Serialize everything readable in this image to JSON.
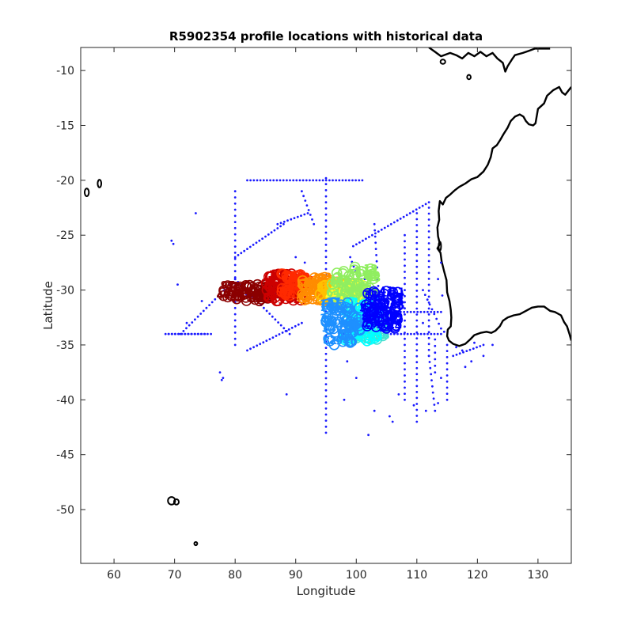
{
  "chart_data": {
    "type": "scatter",
    "title": "R5902354 profile locations with historical data",
    "xlabel": "Longitude",
    "ylabel": "Latitude",
    "xlim": [
      54.5,
      135.5
    ],
    "ylim": [
      -54.9,
      -7.9
    ],
    "xticks": [
      60,
      70,
      80,
      90,
      100,
      110,
      120,
      130
    ],
    "yticks": [
      -10,
      -15,
      -20,
      -25,
      -30,
      -35,
      -40,
      -45,
      -50
    ],
    "grid": false,
    "legend": "none",
    "colors": {
      "historical": "#1a1aff",
      "coastline": "#000000",
      "axis": "#262626"
    },
    "series": [
      {
        "kind": "historical-points",
        "tracks": [
          {
            "from": [
              82,
              -20
            ],
            "to": [
              101,
              -20
            ]
          },
          {
            "from": [
              95,
              -19.8
            ],
            "to": [
              95,
              -43
            ]
          },
          {
            "from": [
              80,
              -21
            ],
            "to": [
              80,
              -35
            ]
          },
          {
            "from": [
              69,
              -34
            ],
            "to": [
              76,
              -34
            ]
          },
          {
            "from": [
              71,
              -34
            ],
            "to": [
              80,
              -29
            ]
          },
          {
            "from": [
              80,
              -29
            ],
            "to": [
              89,
              -34
            ]
          },
          {
            "from": [
              82,
              -35.5
            ],
            "to": [
              91,
              -33
            ]
          },
          {
            "from": [
              80,
              -27
            ],
            "to": [
              88,
              -24
            ]
          },
          {
            "from": [
              87,
              -24
            ],
            "to": [
              92,
              -23
            ]
          },
          {
            "from": [
              91,
              -21
            ],
            "to": [
              93,
              -24
            ]
          },
          {
            "from": [
              99.5,
              -26
            ],
            "to": [
              112,
              -22
            ]
          },
          {
            "from": [
              103,
              -24
            ],
            "to": [
              104,
              -33
            ]
          },
          {
            "from": [
              108,
              -25
            ],
            "to": [
              108,
              -40
            ]
          },
          {
            "from": [
              110,
              -23
            ],
            "to": [
              110,
              -42
            ]
          },
          {
            "from": [
              112,
              -22.5
            ],
            "to": [
              112,
              -36
            ]
          },
          {
            "from": [
              112,
              -36
            ],
            "to": [
              113,
              -41
            ]
          },
          {
            "from": [
              115,
              -35
            ],
            "to": [
              115,
              -40
            ]
          },
          {
            "from": [
              116,
              -36
            ],
            "to": [
              121,
              -35
            ]
          },
          {
            "from": [
              98,
              -34
            ],
            "to": [
              114,
              -34
            ]
          },
          {
            "from": [
              99,
              -29
            ],
            "to": [
              102,
              -29
            ]
          },
          {
            "from": [
              104,
              -32
            ],
            "to": [
              114,
              -32
            ]
          },
          {
            "from": [
              78,
              -30.5
            ],
            "to": [
              89,
              -30.2
            ]
          },
          {
            "from": [
              99,
              -27
            ],
            "to": [
              101,
              -30
            ]
          },
          {
            "from": [
              68.5,
              -34
            ],
            "to": [
              75,
              -34
            ]
          },
          {
            "from": [
              111,
              -30
            ],
            "to": [
              114,
              -33.5
            ]
          },
          {
            "from": [
              113,
              -34.5
            ],
            "to": [
              113,
              -37.5
            ]
          }
        ],
        "points": [
          [
            73.5,
            -23
          ],
          [
            69.5,
            -25.5
          ],
          [
            69.8,
            -25.8
          ],
          [
            70.5,
            -29.5
          ],
          [
            74.5,
            -31
          ],
          [
            72,
            -33
          ],
          [
            77.5,
            -37.5
          ],
          [
            77.8,
            -38.2
          ],
          [
            78,
            -38
          ],
          [
            88.5,
            -39.5
          ],
          [
            98.5,
            -36.5
          ],
          [
            100,
            -38
          ],
          [
            102,
            -43.2
          ],
          [
            98,
            -40
          ],
          [
            103,
            -41
          ],
          [
            105.5,
            -41.5
          ],
          [
            106,
            -42
          ],
          [
            107,
            -39.5
          ],
          [
            109.5,
            -40.5
          ],
          [
            111.5,
            -41
          ],
          [
            113.5,
            -40.3
          ],
          [
            114,
            -38
          ],
          [
            118,
            -37
          ],
          [
            119,
            -36.5
          ],
          [
            122.5,
            -35
          ],
          [
            121,
            -36
          ],
          [
            111,
            -33
          ],
          [
            114.5,
            -33.8
          ],
          [
            114.2,
            -30.5
          ],
          [
            113.5,
            -29
          ],
          [
            114,
            -27.5
          ],
          [
            116.5,
            -35.2
          ],
          [
            117.5,
            -35.5
          ],
          [
            119.5,
            -34.8
          ],
          [
            90,
            -27
          ],
          [
            91.5,
            -27.5
          ]
        ]
      },
      {
        "kind": "profile-markers",
        "clusters": [
          {
            "color": "#8b0000",
            "lon": [
              78,
              87
            ],
            "lat": [
              -31,
              -29.5
            ],
            "count": 60
          },
          {
            "color": "#cc0000",
            "lon": [
              85,
              91
            ],
            "lat": [
              -31,
              -28.5
            ],
            "count": 60
          },
          {
            "color": "#ff2a00",
            "lon": [
              87.5,
              92
            ],
            "lat": [
              -30.5,
              -28.5
            ],
            "count": 40
          },
          {
            "color": "#ff8c00",
            "lon": [
              91,
              97
            ],
            "lat": [
              -31,
              -28.8
            ],
            "count": 55
          },
          {
            "color": "#ffc000",
            "lon": [
              94,
              100
            ],
            "lat": [
              -31,
              -29.3
            ],
            "count": 55
          },
          {
            "color": "#ffff30",
            "lon": [
              96,
              101
            ],
            "lat": [
              -31,
              -29.5
            ],
            "count": 40
          },
          {
            "color": "#90ee60",
            "lon": [
              96,
              103
            ],
            "lat": [
              -31,
              -27.8
            ],
            "count": 55
          },
          {
            "color": "#40e0d0",
            "lon": [
              99,
              105
            ],
            "lat": [
              -34.5,
              -31.5
            ],
            "count": 60
          },
          {
            "color": "#00ffff",
            "lon": [
              98,
              103.5
            ],
            "lat": [
              -34.7,
              -31
            ],
            "count": 50
          },
          {
            "color": "#1e90ff",
            "lon": [
              95,
              101
            ],
            "lat": [
              -35,
              -31
            ],
            "count": 60
          },
          {
            "color": "#0000ff",
            "lon": [
              101.5,
              107
            ],
            "lat": [
              -33.5,
              -30
            ],
            "count": 70
          }
        ]
      }
    ]
  }
}
